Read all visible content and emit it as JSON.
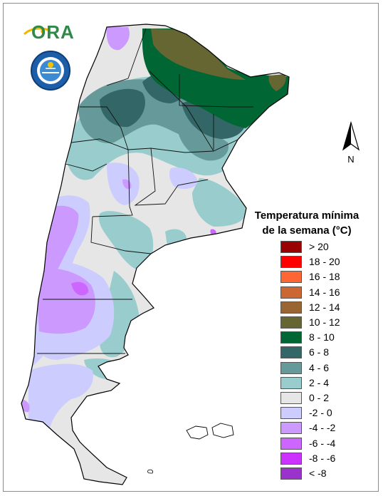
{
  "header": {
    "logo_text": "ORA",
    "seal_text": "SERVICIO METEOROLÓGICO NACIONAL · ARGENTINA"
  },
  "north_arrow": {
    "label": "N"
  },
  "legend": {
    "title_line1": "Temperatura mínima",
    "title_line2": "de la semana (°C)",
    "items": [
      {
        "label": "> 20",
        "color": "#990000"
      },
      {
        "label": "18 - 20",
        "color": "#ff0000"
      },
      {
        "label": "16 - 18",
        "color": "#ff6633"
      },
      {
        "label": "14 - 16",
        "color": "#cc6633"
      },
      {
        "label": "12 - 14",
        "color": "#996633"
      },
      {
        "label": "10 - 12",
        "color": "#666633"
      },
      {
        "label": "8 - 10",
        "color": "#006633"
      },
      {
        "label": "6 - 8",
        "color": "#336666"
      },
      {
        "label": "4 - 6",
        "color": "#669999"
      },
      {
        "label": "2 - 4",
        "color": "#99cccc"
      },
      {
        "label": "0 - 2",
        "color": "#e6e6e6"
      },
      {
        "label": "-2 - 0",
        "color": "#ccccff"
      },
      {
        "label": "-4 - -2",
        "color": "#cc99ff"
      },
      {
        "label": "-6 - -4",
        "color": "#cc66ff"
      },
      {
        "label": "-8 - -6",
        "color": "#cc33ff"
      },
      {
        "label": "< -8",
        "color": "#9933cc"
      }
    ]
  }
}
